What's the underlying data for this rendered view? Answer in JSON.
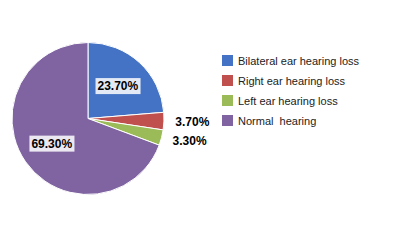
{
  "chart_data": {
    "type": "pie",
    "categories": [
      "Bilateral ear hearing loss",
      "Right ear hearing loss",
      "Left ear hearing loss",
      "Normal  hearing"
    ],
    "values": [
      23.7,
      3.7,
      3.3,
      69.3
    ],
    "value_labels": [
      "23.70%",
      "3.70%",
      "3.30%",
      "69.30%"
    ],
    "colors": [
      "#4472C4",
      "#C0504D",
      "#9BBB59",
      "#8064A2"
    ],
    "data_labels": true,
    "legend": "right"
  }
}
